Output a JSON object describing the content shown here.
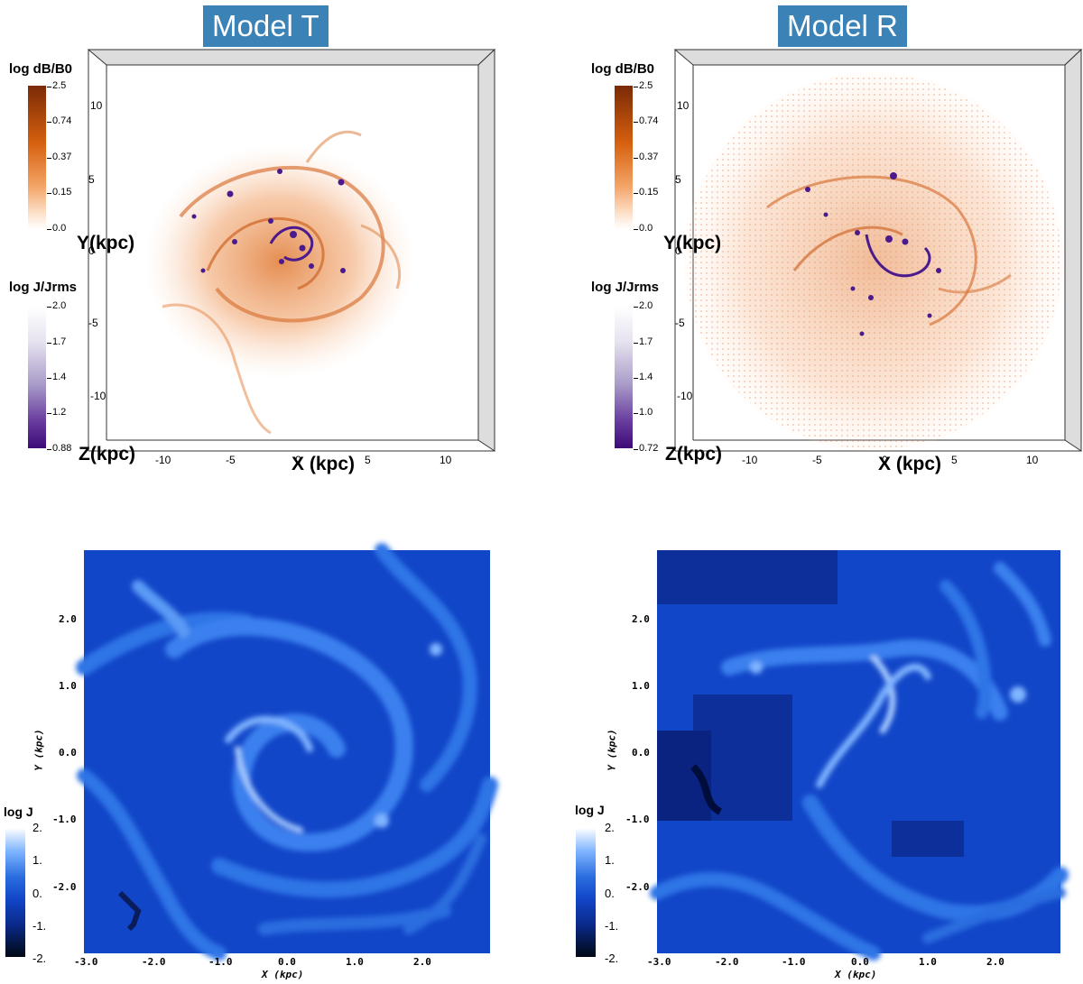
{
  "models": [
    {
      "title": "Model T",
      "cb_db": {
        "title": "log dB/B0",
        "ticks": [
          "2.5",
          "0.74",
          "0.37",
          "0.15",
          "0.0"
        ]
      },
      "cb_j": {
        "title": "log J/Jrms",
        "ticks": [
          "2.0",
          "1.7",
          "1.4",
          "1.2",
          "0.88"
        ]
      },
      "y_label": "Y(kpc)",
      "x_label": "X (kpc)",
      "z_label": "Z(kpc)",
      "x_ticks": [
        "-10",
        "-5",
        "0",
        "5",
        "10"
      ],
      "y_ticks": [
        "10",
        "5",
        "0",
        "-5",
        "-10"
      ]
    },
    {
      "title": "Model R",
      "cb_db": {
        "title": "log dB/B0",
        "ticks": [
          "2.5",
          "0.74",
          "0.37",
          "0.15",
          "0.0"
        ]
      },
      "cb_j": {
        "title": "log J/Jrms",
        "ticks": [
          "2.0",
          "1.7",
          "1.4",
          "1.0",
          "0.72"
        ]
      },
      "y_label": "Y(kpc)",
      "x_label": "X (kpc)",
      "z_label": "Z(kpc)",
      "x_ticks": [
        "-10",
        "-5",
        "0",
        "5",
        "10"
      ],
      "y_ticks": [
        "10",
        "5",
        "0",
        "-5",
        "-10"
      ]
    }
  ],
  "slices": [
    {
      "cb_title": "log J",
      "cb_ticks": [
        "2.",
        "1.",
        "0.",
        "-1.",
        "-2."
      ],
      "x_ticks": [
        "-3.0",
        "-2.0",
        "-1.0",
        "0.0",
        "1.0",
        "2.0"
      ],
      "y_ticks": [
        "2.0",
        "1.0",
        "0.0",
        "-1.0",
        "-2.0"
      ],
      "x_label": "X (kpc)",
      "y_label": "Y (kpc)"
    },
    {
      "cb_title": "log J",
      "cb_ticks": [
        "2.",
        "1.",
        "0.",
        "-1.",
        "-2."
      ],
      "x_ticks": [
        "-3.0",
        "-2.0",
        "-1.0",
        "0.0",
        "1.0",
        "2.0"
      ],
      "y_ticks": [
        "2.0",
        "1.0",
        "0.0",
        "-1.0",
        "-2.0"
      ],
      "x_label": "X (kpc)",
      "y_label": "Y (kpc)"
    }
  ],
  "colors": {
    "title_bg": "#3b82b6",
    "orange": "#d2691e",
    "purple": "#4b1a8c",
    "blue_bg": "#1246c8"
  }
}
